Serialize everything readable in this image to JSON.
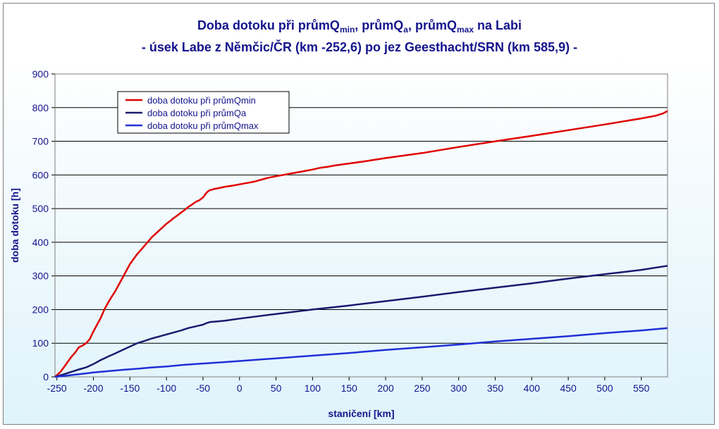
{
  "title_line1": {
    "part1": "Doba dotoku při průmQ",
    "sub1": "min",
    "part2": ", průmQ",
    "sub2": "a",
    "part3": ", průmQ",
    "sub3": "max",
    "part4": " na Labi"
  },
  "title_line2": "- úsek Labe z Němčic/ČR (km -252,6) po jez Geesthacht/SRN (km 585,9) -",
  "chart_data": {
    "type": "line",
    "xlabel": "staničení [km]",
    "ylabel": "doba dotoku [h]",
    "xlim": [
      -252.6,
      585.9
    ],
    "ylim": [
      0,
      900
    ],
    "xticks": [
      -250,
      -200,
      -150,
      -100,
      -50,
      0,
      50,
      100,
      150,
      200,
      250,
      300,
      350,
      400,
      450,
      500,
      550
    ],
    "xtick_labels": [
      "-250",
      "-200",
      "-150",
      "-100",
      "-50",
      "0",
      "50",
      "100",
      "150",
      "200",
      "250",
      "300",
      "350",
      "400",
      "450",
      "500",
      "550"
    ],
    "yticks": [
      0,
      100,
      200,
      300,
      400,
      500,
      600,
      700,
      800,
      900
    ],
    "ytick_labels": [
      "0",
      "100",
      "200",
      "300",
      "400",
      "500",
      "600",
      "700",
      "800",
      "900"
    ],
    "grid": "horizontal",
    "legend_position": "top-left",
    "series": [
      {
        "name": "doba dotoku při průmQmin",
        "color": "#e00000",
        "x": [
          -252.6,
          -245,
          -240,
          -235,
          -230,
          -225,
          -220,
          -215,
          -210,
          -205,
          -200,
          -195,
          -190,
          -185,
          -180,
          -175,
          -170,
          -165,
          -160,
          -155,
          -150,
          -145,
          -140,
          -135,
          -130,
          -125,
          -120,
          -115,
          -110,
          -105,
          -100,
          -95,
          -90,
          -85,
          -80,
          -75,
          -70,
          -65,
          -60,
          -55,
          -50,
          -45,
          -42,
          -40,
          -35,
          -30,
          -20,
          -10,
          0,
          10,
          20,
          30,
          40,
          50,
          60,
          70,
          80,
          90,
          100,
          110,
          120,
          130,
          140,
          150,
          170,
          200,
          250,
          300,
          350,
          400,
          450,
          500,
          550,
          570,
          580,
          585.9
        ],
        "y": [
          0,
          15,
          30,
          45,
          60,
          72,
          88,
          93,
          100,
          112,
          135,
          155,
          175,
          200,
          220,
          238,
          255,
          275,
          295,
          315,
          335,
          350,
          365,
          377,
          390,
          402,
          415,
          425,
          435,
          445,
          455,
          463,
          472,
          480,
          488,
          496,
          505,
          512,
          520,
          525,
          533,
          548,
          553,
          555,
          558,
          560,
          565,
          568,
          572,
          576,
          580,
          586,
          592,
          596,
          600,
          604,
          608,
          612,
          616,
          621,
          624,
          628,
          631,
          634,
          640,
          650,
          665,
          683,
          700,
          716,
          733,
          750,
          768,
          776,
          783,
          790
        ]
      },
      {
        "name": "doba dotoku při průmQa",
        "color": "#1a1a6e",
        "x": [
          -252.6,
          -240,
          -230,
          -220,
          -210,
          -200,
          -190,
          -180,
          -170,
          -160,
          -150,
          -140,
          -130,
          -120,
          -110,
          -100,
          -90,
          -80,
          -70,
          -60,
          -50,
          -45,
          -40,
          -30,
          -20,
          -10,
          0,
          50,
          100,
          150,
          200,
          250,
          300,
          350,
          400,
          450,
          500,
          550,
          585.9
        ],
        "y": [
          0,
          8,
          15,
          22,
          28,
          38,
          50,
          60,
          70,
          80,
          90,
          100,
          107,
          114,
          120,
          126,
          132,
          138,
          145,
          150,
          155,
          160,
          163,
          165,
          167,
          170,
          173,
          187,
          200,
          212,
          225,
          238,
          252,
          265,
          278,
          292,
          305,
          318,
          330
        ]
      },
      {
        "name": "doba dotoku při průmQmax",
        "color": "#1f2fd6",
        "x": [
          -252.6,
          -240,
          -220,
          -200,
          -180,
          -160,
          -140,
          -120,
          -100,
          -80,
          -60,
          -40,
          -20,
          0,
          50,
          100,
          150,
          200,
          250,
          300,
          350,
          400,
          450,
          500,
          550,
          585.9
        ],
        "y": [
          0,
          3,
          8,
          13,
          17,
          21,
          24,
          28,
          31,
          35,
          38,
          41,
          44,
          47,
          55,
          63,
          71,
          80,
          88,
          96,
          105,
          113,
          121,
          130,
          138,
          145
        ]
      }
    ]
  }
}
